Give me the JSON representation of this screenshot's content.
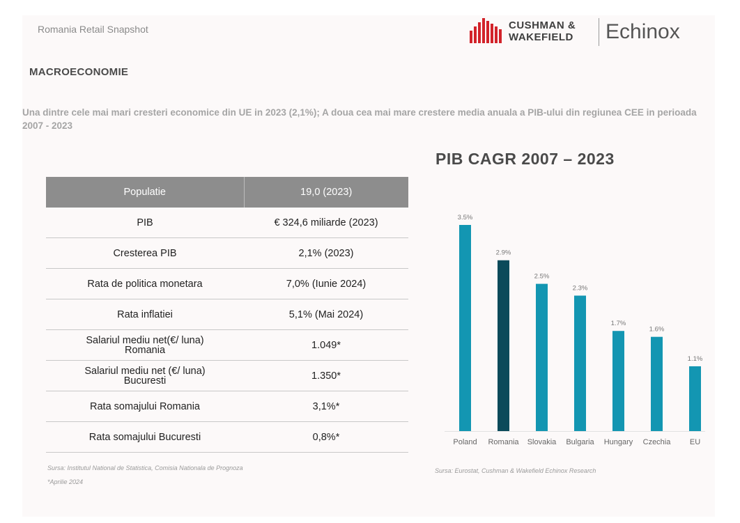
{
  "header": {
    "snapshot_label": "Romania Retail Snapshot",
    "logo_cw_line1": "CUSHMAN &",
    "logo_cw_line2": "WAKEFIELD",
    "logo_echinox": "Echinox",
    "brand_color": "#d2232a"
  },
  "section_title": "MACROECONOMIE",
  "intro": "Una dintre cele mai mari cresteri economice din UE in 2023 (2,1%); A doua cea mai mare crestere media anuala a PIB-ului din regiunea CEE in perioada 2007 - 2023",
  "table": {
    "header": [
      "Populatie",
      "19,0 (2023)"
    ],
    "rows": [
      {
        "label": "PIB",
        "value": "€ 324,6 miliarde (2023)"
      },
      {
        "label": "Cresterea PIB",
        "value": "2,1% (2023)"
      },
      {
        "label": "Rata de politica monetara",
        "value": "7,0% (Iunie 2024)"
      },
      {
        "label": "Rata inflatiei",
        "value": "5,1% (Mai 2024)"
      },
      {
        "label_line1": "Salariul mediu net(€/ luna)",
        "label_line2": "Romania",
        "value": "1.049*"
      },
      {
        "label_line1": "Salariul mediu net (€/ luna)",
        "label_line2": "Bucuresti",
        "value": "1.350*"
      },
      {
        "label": "Rata somajului Romania",
        "value": "3,1%*"
      },
      {
        "label": "Rata somajului Bucuresti",
        "value": "0,8%*"
      }
    ],
    "source": "Sursa: Institutul National de Statistica, Comisia Nationala de Prognoza",
    "note": "*Aprilie 2024"
  },
  "chart_source": "Sursa: Eurostat, Cushman & Wakefield Echinox Research",
  "chart_data": {
    "type": "bar",
    "title": "PIB CAGR 2007 – 2023",
    "categories": [
      "Poland",
      "Romania",
      "Slovakia",
      "Bulgaria",
      "Hungary",
      "Czechia",
      "EU"
    ],
    "values": [
      3.5,
      2.9,
      2.5,
      2.3,
      1.7,
      1.6,
      1.1
    ],
    "data_labels": [
      "3.5%",
      "2.9%",
      "2.5%",
      "2.3%",
      "1.7%",
      "1.6%",
      "1.1%"
    ],
    "colors": [
      "#1396b2",
      "#0b4a5a",
      "#1396b2",
      "#1396b2",
      "#1396b2",
      "#1396b2",
      "#1396b2"
    ],
    "ylim": [
      0,
      3.5
    ],
    "grid": false,
    "legend": "none"
  }
}
